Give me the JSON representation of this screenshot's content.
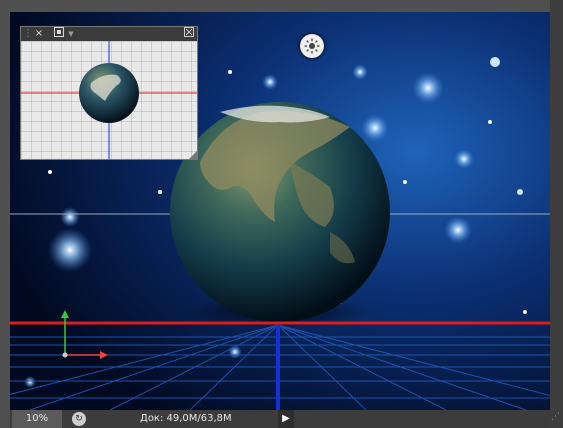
{
  "status_bar": {
    "zoom": "10%",
    "doc_info": "Док: 49,0M/63,8M"
  },
  "thumbnail_panel": {
    "close_glyph": "×"
  },
  "icons": {
    "light": "sun-icon",
    "close": "close-icon",
    "panel_toggle": "panel-toggle-icon",
    "collapse": "collapse-icon",
    "status": "status-icon",
    "menu_arrow": "menu-arrow-icon"
  },
  "colors": {
    "ground_line": "#e01b1b",
    "vertical_axis": "#1530d8",
    "horizon_line": "#9aa9c0",
    "axis_x": "#e44",
    "axis_y": "#3c3"
  }
}
